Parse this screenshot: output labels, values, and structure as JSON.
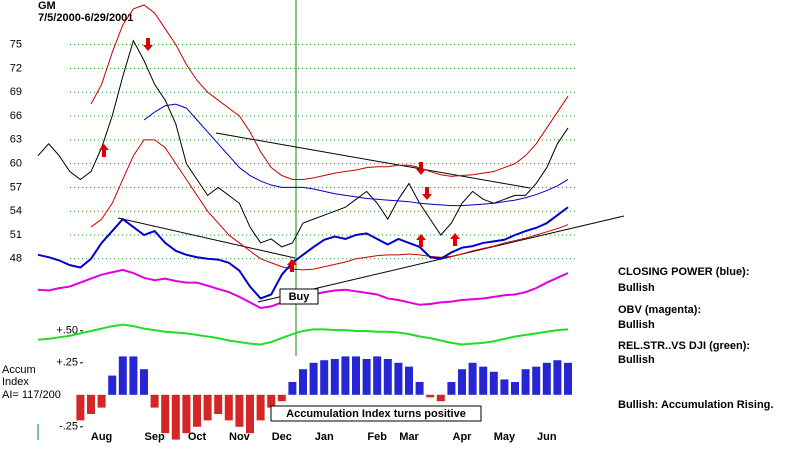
{
  "chart_data": [
    {
      "type": "line",
      "title": "GM",
      "subtitle": "7/5/2000-6/29/2001",
      "ylim": [
        36.5,
        80
      ],
      "yticks": [
        75,
        72,
        69,
        66,
        63,
        60,
        57,
        54,
        51,
        48
      ],
      "grid": true,
      "grid_color": "#1a9a1a",
      "series": [
        {
          "name": "Price",
          "color": "#000000",
          "values": [
            61,
            62.5,
            61,
            59,
            58,
            59,
            62,
            66,
            71,
            75.5,
            73,
            70,
            68,
            65,
            60,
            58,
            56,
            57,
            56,
            55,
            52,
            50,
            50.5,
            49.5,
            50,
            52.5,
            53,
            53.5,
            54,
            54.5,
            55.5,
            56.5,
            55,
            53,
            55.5,
            57.5,
            55,
            53,
            51,
            52.5,
            55,
            56.5,
            55.5,
            55,
            55.5,
            56,
            56,
            57.5,
            59.5,
            62.5,
            64.5
          ]
        },
        {
          "name": "Upper band",
          "color": "#cc0000",
          "values": [
            null,
            null,
            null,
            null,
            null,
            67.5,
            70,
            74,
            77.5,
            79.5,
            80,
            79,
            77,
            75,
            72.5,
            70.5,
            69,
            68,
            67,
            66,
            64,
            61.5,
            59.5,
            58.5,
            58,
            58,
            58.2,
            58.5,
            58.8,
            59,
            59.2,
            59.5,
            59.6,
            59.6,
            59.8,
            59.8,
            59.5,
            59,
            58.6,
            58.4,
            58.5,
            58.6,
            58.8,
            59,
            59.5,
            60,
            61,
            62.5,
            64.5,
            66.5,
            68.5
          ]
        },
        {
          "name": "Lower band",
          "color": "#cc0000",
          "values": [
            null,
            null,
            null,
            null,
            null,
            52,
            53,
            55,
            58,
            61,
            63,
            63,
            62,
            60,
            58,
            56,
            54,
            52.5,
            51,
            50,
            49,
            48,
            47.5,
            47,
            46.7,
            46.6,
            46.7,
            47,
            47.3,
            47.6,
            48,
            48.2,
            48.4,
            48.5,
            48.5,
            48.6,
            48.5,
            48.3,
            48.2,
            48.3,
            48.6,
            49,
            49.3,
            49.6,
            50,
            50.3,
            50.6,
            51,
            51.4,
            51.8,
            52.3
          ]
        },
        {
          "name": "Moving average",
          "color": "#0000cc",
          "values": [
            null,
            null,
            null,
            null,
            null,
            null,
            null,
            null,
            null,
            null,
            65.5,
            66.5,
            67.3,
            67.5,
            67,
            65.5,
            64,
            62.5,
            61,
            59.5,
            58.5,
            57.8,
            57.3,
            57,
            57,
            57,
            56.8,
            56.5,
            56.2,
            56,
            55.8,
            55.6,
            55.5,
            55.4,
            55.3,
            55.2,
            55,
            54.9,
            54.8,
            54.7,
            54.7,
            54.8,
            54.9,
            55,
            55.2,
            55.4,
            55.7,
            56.1,
            56.6,
            57.2,
            58
          ]
        },
        {
          "name": "Closing Power",
          "color": "#0000cc",
          "width": 2,
          "values": [
            48.5,
            48.2,
            47.8,
            47.2,
            46.9,
            48,
            50,
            51.5,
            53,
            52,
            51,
            51.5,
            50,
            49,
            48.5,
            48.2,
            48,
            47.9,
            47.5,
            46.5,
            44.5,
            43,
            43.5,
            46,
            47.5,
            48.5,
            49.5,
            50.4,
            50.8,
            50.5,
            51,
            51.2,
            50.5,
            49.8,
            50.5,
            50,
            49.5,
            48.2,
            48,
            48.8,
            49.4,
            49.6,
            50,
            50.2,
            50.4,
            51,
            51.5,
            51.9,
            52.5,
            53.5,
            54.5
          ]
        },
        {
          "name": "OBV",
          "color": "#e000e0",
          "width": 2,
          "values": [
            44.1,
            44,
            44.3,
            44.5,
            45,
            45.5,
            46,
            46.3,
            46.6,
            46.2,
            45.6,
            45.3,
            45.5,
            45.2,
            45,
            45,
            44.6,
            44.2,
            43.8,
            43.2,
            42.5,
            41.8,
            42,
            42.5,
            42.8,
            43.2,
            43.5,
            43.8,
            44,
            44.1,
            43.9,
            43.7,
            43.5,
            43,
            42.8,
            42.5,
            42.2,
            42.3,
            42.5,
            42.6,
            42.8,
            42.9,
            43,
            43.2,
            43.4,
            43.5,
            43.8,
            44.3,
            45,
            45.6,
            46.2
          ]
        },
        {
          "name": "Rel. Strength vs DJI",
          "color": "#22dd22",
          "width": 2,
          "values": [
            37.8,
            37.9,
            38.1,
            38.3,
            38.6,
            38.9,
            39.2,
            39.5,
            39.7,
            39.5,
            39.2,
            39,
            38.8,
            38.7,
            38.6,
            38.4,
            38.2,
            38,
            37.7,
            37.5,
            37.3,
            37.2,
            37.5,
            38,
            38.5,
            38.9,
            39.1,
            39.1,
            39,
            39,
            38.9,
            38.9,
            38.8,
            38.8,
            38.7,
            38.5,
            38.2,
            38,
            37.7,
            37.4,
            37.2,
            37.3,
            37.4,
            37.6,
            37.9,
            38.2,
            38.4,
            38.6,
            38.8,
            39,
            39.1
          ]
        }
      ],
      "annotations": [
        "Buy"
      ]
    },
    {
      "type": "bar",
      "title_lines": [
        "Accum",
        "Index"
      ],
      "ai_label": "AI= 117/200",
      "ylim": [
        -0.4,
        0.6
      ],
      "yticks": [
        {
          "value": 0.5,
          "label": "+.50"
        },
        {
          "value": 0.25,
          "label": "+.25"
        },
        {
          "value": -0.25,
          "label": "-.25"
        }
      ],
      "categories": [
        null,
        null,
        null,
        null,
        null,
        null,
        "Aug",
        null,
        null,
        null,
        null,
        "Sep",
        null,
        null,
        null,
        "Oct",
        null,
        null,
        null,
        "Nov",
        null,
        null,
        null,
        "Dec",
        null,
        null,
        null,
        "Jan",
        null,
        null,
        null,
        null,
        "Feb",
        null,
        null,
        "Mar",
        null,
        null,
        null,
        null,
        "Apr",
        null,
        null,
        null,
        "May",
        null,
        null,
        null,
        "Jun",
        null,
        null
      ],
      "values": [
        null,
        null,
        null,
        null,
        -0.2,
        -0.15,
        -0.1,
        0.15,
        0.3,
        0.3,
        0.2,
        -0.1,
        -0.3,
        -0.35,
        -0.3,
        -0.25,
        -0.2,
        -0.15,
        -0.2,
        -0.25,
        -0.3,
        -0.2,
        -0.1,
        -0.05,
        0.1,
        0.2,
        0.25,
        0.27,
        0.28,
        0.3,
        0.3,
        0.28,
        0.3,
        0.28,
        0.25,
        0.22,
        0.1,
        -0.02,
        -0.05,
        0.1,
        0.2,
        0.25,
        0.22,
        0.18,
        0.12,
        0.1,
        0.2,
        0.22,
        0.25,
        0.27,
        0.25
      ],
      "positive_color": "#0000cc",
      "negative_color": "#cc0000",
      "annotations": [
        "Accumulation Index turns positive"
      ]
    }
  ],
  "indicator_status": [
    {
      "label": "CLOSING POWER (blue):",
      "status": "Bullish"
    },
    {
      "label": "OBV (magenta):",
      "status": "Bullish"
    },
    {
      "label": "REL.STR..VS DJI (green):",
      "status": "Bullish"
    }
  ],
  "summary": "Bullish: Accumulation Rising."
}
